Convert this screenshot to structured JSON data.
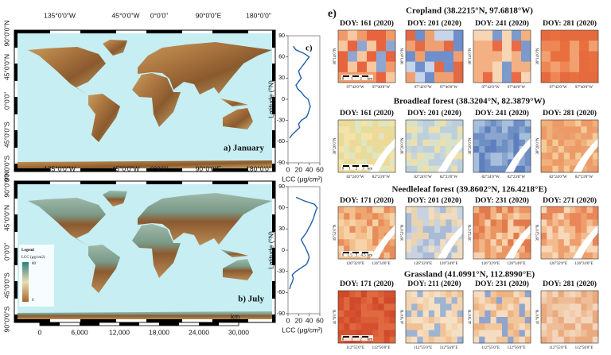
{
  "maps": {
    "top_labels": [
      "135°0'0\"W",
      "45°0'0\"W",
      "0°0'0\"",
      "90°0'0\"E",
      "180°0'0\""
    ],
    "lat_labels": [
      "90°0'0\"N",
      "45°0'0\"N",
      "0°0'0\"",
      "45°0'0\"S",
      "90°0'0\"S"
    ],
    "panels": [
      {
        "label": "a) January"
      },
      {
        "label": "b) July"
      }
    ],
    "legend": {
      "title": "Legend",
      "unit": "LCC (μg/cm2)",
      "max": "80",
      "min": "0"
    },
    "scale_bar": {
      "labels": [
        "0",
        "6,000",
        "12,000",
        "18,000",
        "24,000",
        "30,000"
      ],
      "unit": "km"
    }
  },
  "chart_data": [
    {
      "type": "line",
      "label": "c)",
      "x_label": "LCC (μg/cm²)",
      "y_label": "Latitude (°N)",
      "color": "#1f5fa8",
      "xlim": [
        0,
        60
      ],
      "xticks": [
        0,
        20,
        40,
        60
      ],
      "ylim": [
        -90,
        90
      ],
      "yticks": [
        90,
        60,
        30,
        0,
        -30,
        -60,
        -90
      ],
      "latitudes": [
        -55,
        -50,
        -45,
        -40,
        -35,
        -30,
        -25,
        -20,
        -15,
        -10,
        -5,
        0,
        5,
        10,
        15,
        20,
        25,
        30,
        35,
        40,
        45,
        50,
        55,
        60,
        65,
        70,
        75
      ],
      "values": [
        3,
        8,
        15,
        22,
        20,
        25,
        35,
        38,
        40,
        42,
        40,
        38,
        30,
        25,
        18,
        15,
        20,
        25,
        22,
        20,
        25,
        30,
        35,
        40,
        30,
        15,
        10
      ]
    },
    {
      "type": "line",
      "x_label": "LCC (μg/cm²)",
      "y_label": "Latitude (°N)",
      "color": "#1f5fa8",
      "xlim": [
        0,
        60
      ],
      "xticks": [
        0,
        20,
        40,
        60
      ],
      "ylim": [
        -90,
        90
      ],
      "yticks": [
        90,
        60,
        30,
        0,
        -30,
        -60,
        -90
      ],
      "latitudes": [
        -55,
        -50,
        -45,
        -40,
        -35,
        -30,
        -25,
        -20,
        -15,
        -10,
        -5,
        0,
        5,
        10,
        15,
        20,
        25,
        30,
        35,
        40,
        45,
        50,
        55,
        60,
        65,
        70,
        75
      ],
      "values": [
        3,
        5,
        8,
        10,
        8,
        15,
        25,
        35,
        38,
        40,
        38,
        35,
        32,
        28,
        25,
        30,
        35,
        38,
        42,
        45,
        48,
        50,
        52,
        55,
        50,
        30,
        15
      ]
    }
  ],
  "panel_e": {
    "label": "e)",
    "sites": [
      {
        "title": "Cropland (38.2215°N, 97.6818°W)",
        "doy": [
          "DOY: 161 (2020)",
          "DOY: 201 (2020)",
          "DOY: 241 (2020)",
          "DOY: 281 (2020)"
        ],
        "lon_labels": [
          "97°42'0\"W",
          "97°40'0\"W"
        ],
        "lat_label": "38°14'0\"N",
        "scale_labels": [
          "0",
          "1",
          "2",
          "km"
        ]
      },
      {
        "title": "Broadleaf forest (38.3204°N, 82.3879°W)",
        "doy": [
          "DOY: 161 (2020)",
          "DOY: 201 (2020)",
          "DOY: 241 (2020)",
          "DOY: 281 (2020)"
        ],
        "lon_labels": [
          "82°24'0\"W",
          "82°23'0\"W"
        ],
        "lat_label": "38°20'0\"N",
        "scale_labels": [
          "0",
          "1",
          "2",
          "3",
          "km"
        ]
      },
      {
        "title": "Needleleaf forest (39.8602°N, 126.4218°E)",
        "doy": [
          "DOY: 171 (2020)",
          "DOY: 201 (2020)",
          "DOY: 231 (2020)",
          "DOY: 271 (2020)"
        ],
        "lon_labels": [
          "126°32'0\"E",
          "126°34'0\"E"
        ],
        "lat_label": "39°52'0\"N",
        "scale_labels": [
          "0",
          "1.5",
          "3",
          "4.5",
          "km"
        ]
      },
      {
        "title": "Grassland (41.0991°N, 112.8990°E)",
        "doy": [
          "DOY: 171 (2020)",
          "DOY: 211 (2020)",
          "DOY: 231 (2020)",
          "DOY: 281 (2020)"
        ],
        "lon_labels": [
          "112°55'0\"E",
          "112°56'0\"E"
        ],
        "lat_label": "41°6'0\"N",
        "scale_labels": [
          "0",
          "1",
          "2",
          "km"
        ]
      }
    ]
  }
}
